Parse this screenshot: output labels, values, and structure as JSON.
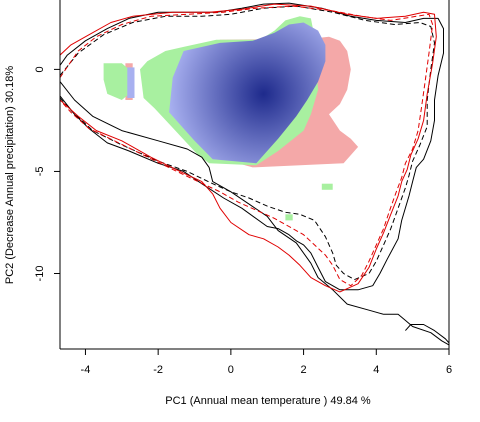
{
  "chart_data": {
    "type": "contour-density",
    "xlabel": "PC1 (Annual mean temperature ) 49.84 %",
    "ylabel": "PC2 (Decrease Annual precipitation) 30.18%",
    "xlim": [
      -4.7,
      6.0
    ],
    "ylim": [
      -13.7,
      3.4
    ],
    "x_ticks": [
      -4,
      -2,
      0,
      2,
      4,
      6
    ],
    "y_ticks": [
      0,
      -5,
      -10
    ],
    "grid": false,
    "colors": {
      "density_core": "#1e2a8c",
      "density_edge": "#a8b0f0",
      "region_green": "#a8f0a0",
      "region_pink": "#f4a8a8",
      "contour_black": "#000000",
      "contour_red": "#e00000"
    },
    "density_peak": {
      "x": 0.9,
      "y": -1.2
    },
    "regions": {
      "pink": [
        [
          -0.3,
          1.45
        ],
        [
          2.2,
          1.5
        ],
        [
          2.7,
          1.6
        ],
        [
          3.0,
          1.4
        ],
        [
          3.2,
          0.9
        ],
        [
          3.3,
          0.0
        ],
        [
          3.2,
          -1.0
        ],
        [
          3.0,
          -1.7
        ],
        [
          2.7,
          -2.2
        ],
        [
          3.0,
          -3.0
        ],
        [
          3.3,
          -3.4
        ],
        [
          3.5,
          -3.8
        ],
        [
          3.1,
          -4.6
        ],
        [
          0.6,
          -4.8
        ],
        [
          -0.4,
          -4.3
        ],
        [
          -0.9,
          -3.3
        ],
        [
          -0.9,
          1.0
        ]
      ],
      "green": [
        [
          -1.3,
          1.1
        ],
        [
          -0.4,
          1.45
        ],
        [
          0.8,
          1.45
        ],
        [
          1.2,
          1.9
        ],
        [
          1.5,
          2.4
        ],
        [
          1.9,
          2.6
        ],
        [
          2.2,
          2.5
        ],
        [
          2.3,
          1.6
        ],
        [
          2.4,
          -1.0
        ],
        [
          2.2,
          -2.2
        ],
        [
          2.0,
          -3.0
        ],
        [
          1.3,
          -4.0
        ],
        [
          0.7,
          -4.7
        ],
        [
          -0.6,
          -4.6
        ],
        [
          -0.9,
          -4.2
        ],
        [
          -2.1,
          -1.9
        ],
        [
          -2.4,
          -1.4
        ],
        [
          -2.5,
          0.0
        ],
        [
          -2.3,
          0.4
        ],
        [
          -1.8,
          0.9
        ]
      ],
      "green_small": [
        [
          [
            -3.5,
            0.3
          ],
          [
            -3.0,
            0.3
          ],
          [
            -2.8,
            0.0
          ],
          [
            -2.8,
            -1.2
          ],
          [
            -3.0,
            -1.5
          ],
          [
            -3.4,
            -1.2
          ],
          [
            -3.5,
            -0.5
          ]
        ],
        [
          [
            2.5,
            -5.6
          ],
          [
            2.8,
            -5.6
          ],
          [
            2.8,
            -5.9
          ],
          [
            2.5,
            -5.9
          ]
        ],
        [
          [
            1.5,
            -7.1
          ],
          [
            1.7,
            -7.1
          ],
          [
            1.7,
            -7.4
          ],
          [
            1.5,
            -7.4
          ]
        ]
      ],
      "pink_small": [
        [
          [
            -2.9,
            0.3
          ],
          [
            -2.7,
            0.3
          ],
          [
            -2.7,
            -1.5
          ],
          [
            -2.9,
            -1.5
          ]
        ]
      ],
      "blue": [
        [
          -1.3,
          0.9
        ],
        [
          -0.3,
          1.3
        ],
        [
          0.6,
          1.4
        ],
        [
          1.2,
          1.8
        ],
        [
          1.6,
          2.2
        ],
        [
          2.0,
          2.3
        ],
        [
          2.4,
          1.9
        ],
        [
          2.6,
          1.2
        ],
        [
          2.6,
          0.4
        ],
        [
          2.4,
          -0.6
        ],
        [
          2.1,
          -1.5
        ],
        [
          1.8,
          -2.3
        ],
        [
          1.3,
          -3.4
        ],
        [
          0.7,
          -4.6
        ],
        [
          -0.5,
          -4.4
        ],
        [
          -1.0,
          -3.5
        ],
        [
          -1.7,
          -2.1
        ],
        [
          -1.6,
          -0.4
        ]
      ],
      "blue_small": [
        [
          [
            -2.85,
            0.1
          ],
          [
            -2.65,
            0.1
          ],
          [
            -2.65,
            -1.4
          ],
          [
            -2.85,
            -1.4
          ]
        ]
      ]
    },
    "series": [
      {
        "style": "solid",
        "color": "#000000",
        "points": [
          [
            -4.7,
            0.2
          ],
          [
            -4.5,
            0.7
          ],
          [
            -4.0,
            1.4
          ],
          [
            -3.4,
            2.0
          ],
          [
            -2.8,
            2.5
          ],
          [
            -2.0,
            2.8
          ],
          [
            -1.2,
            2.8
          ],
          [
            -0.4,
            2.8
          ],
          [
            0.3,
            3.0
          ],
          [
            0.9,
            3.2
          ],
          [
            1.6,
            3.25
          ],
          [
            2.5,
            3.0
          ],
          [
            3.3,
            2.6
          ],
          [
            4.0,
            2.4
          ],
          [
            4.8,
            2.3
          ],
          [
            5.3,
            2.5
          ],
          [
            5.7,
            2.5
          ],
          [
            5.85,
            2.0
          ],
          [
            5.85,
            0.8
          ],
          [
            5.7,
            -0.3
          ],
          [
            5.6,
            -1.5
          ],
          [
            5.6,
            -2.5
          ],
          [
            5.5,
            -3.5
          ],
          [
            5.3,
            -4.4
          ],
          [
            5.1,
            -4.8
          ],
          [
            5.0,
            -5.5
          ],
          [
            4.9,
            -6.2
          ],
          [
            4.7,
            -7.4
          ],
          [
            4.6,
            -8.3
          ],
          [
            4.3,
            -9.3
          ],
          [
            4.1,
            -10.0
          ],
          [
            3.9,
            -10.6
          ],
          [
            3.5,
            -10.8
          ],
          [
            3.0,
            -10.8
          ],
          [
            2.6,
            -10.4
          ],
          [
            2.4,
            -9.7
          ],
          [
            2.2,
            -9.0
          ],
          [
            2.0,
            -8.6
          ],
          [
            1.8,
            -8.4
          ],
          [
            1.6,
            -8.1
          ],
          [
            1.3,
            -7.8
          ],
          [
            1.0,
            -7.7
          ],
          [
            0.3,
            -6.8
          ],
          [
            -0.2,
            -6.3
          ],
          [
            -0.8,
            -5.6
          ],
          [
            -1.3,
            -5.0
          ],
          [
            -2.0,
            -4.6
          ],
          [
            -2.8,
            -4.0
          ],
          [
            -3.4,
            -3.6
          ],
          [
            -3.9,
            -2.9
          ],
          [
            -4.3,
            -2.2
          ],
          [
            -4.7,
            -1.3
          ]
        ]
      },
      {
        "style": "solid",
        "color": "#000000",
        "points": [
          [
            -4.7,
            -0.6
          ],
          [
            -4.3,
            -1.5
          ],
          [
            -3.8,
            -2.3
          ],
          [
            -3.0,
            -3.0
          ],
          [
            -2.0,
            -3.5
          ],
          [
            -1.2,
            -3.9
          ],
          [
            -0.8,
            -4.3
          ],
          [
            -0.6,
            -4.8
          ],
          [
            -0.5,
            -5.5
          ],
          [
            0.0,
            -6.0
          ],
          [
            0.5,
            -6.6
          ],
          [
            1.0,
            -7.2
          ],
          [
            1.3,
            -7.9
          ],
          [
            1.8,
            -8.5
          ],
          [
            2.2,
            -9.5
          ],
          [
            2.4,
            -10.2
          ],
          [
            2.8,
            -10.8
          ],
          [
            3.2,
            -11.5
          ],
          [
            3.8,
            -11.8
          ],
          [
            4.2,
            -12.0
          ],
          [
            4.6,
            -12.0
          ],
          [
            4.8,
            -12.3
          ],
          [
            5.0,
            -12.6
          ],
          [
            5.5,
            -12.9
          ],
          [
            5.8,
            -13.3
          ],
          [
            6.0,
            -13.5
          ]
        ]
      },
      {
        "style": "solid",
        "color": "#000000",
        "points": [
          [
            4.8,
            -12.8
          ],
          [
            4.95,
            -12.5
          ],
          [
            5.3,
            -12.5
          ],
          [
            5.6,
            -12.8
          ],
          [
            5.9,
            -13.2
          ],
          [
            6.0,
            -13.4
          ]
        ]
      },
      {
        "style": "dashed",
        "color": "#000000",
        "points": [
          [
            -4.7,
            -0.3
          ],
          [
            -4.2,
            0.8
          ],
          [
            -3.5,
            1.7
          ],
          [
            -2.7,
            2.3
          ],
          [
            -1.8,
            2.6
          ],
          [
            -0.8,
            2.6
          ],
          [
            0.0,
            2.7
          ],
          [
            0.9,
            3.0
          ],
          [
            1.8,
            3.1
          ],
          [
            2.8,
            2.8
          ],
          [
            3.7,
            2.4
          ],
          [
            4.5,
            2.2
          ],
          [
            5.2,
            2.3
          ],
          [
            5.5,
            2.1
          ],
          [
            5.6,
            1.3
          ],
          [
            5.5,
            0.0
          ],
          [
            5.4,
            -1.5
          ],
          [
            5.4,
            -2.8
          ],
          [
            5.2,
            -3.7
          ],
          [
            5.0,
            -4.5
          ],
          [
            4.9,
            -5.2
          ],
          [
            4.8,
            -5.8
          ],
          [
            4.6,
            -6.8
          ],
          [
            4.4,
            -7.8
          ],
          [
            4.2,
            -8.6
          ],
          [
            4.0,
            -9.4
          ],
          [
            3.8,
            -10.0
          ],
          [
            3.4,
            -10.3
          ],
          [
            3.1,
            -10.0
          ],
          [
            2.9,
            -9.6
          ],
          [
            2.8,
            -9.0
          ],
          [
            2.6,
            -8.2
          ],
          [
            2.3,
            -7.4
          ],
          [
            1.9,
            -7.1
          ],
          [
            1.5,
            -7.0
          ],
          [
            1.0,
            -6.7
          ],
          [
            0.5,
            -6.3
          ],
          [
            0.0,
            -6.0
          ],
          [
            -0.5,
            -5.6
          ],
          [
            -1.2,
            -5.0
          ],
          [
            -2.0,
            -4.5
          ],
          [
            -3.0,
            -3.7
          ],
          [
            -3.8,
            -3.0
          ],
          [
            -4.4,
            -2.0
          ],
          [
            -4.7,
            -1.4
          ]
        ]
      },
      {
        "style": "solid",
        "color": "#e00000",
        "points": [
          [
            -4.7,
            0.7
          ],
          [
            -4.4,
            1.2
          ],
          [
            -3.9,
            1.7
          ],
          [
            -3.3,
            2.3
          ],
          [
            -2.7,
            2.6
          ],
          [
            -1.6,
            2.8
          ],
          [
            -0.6,
            2.8
          ],
          [
            0.3,
            2.95
          ],
          [
            1.2,
            3.2
          ],
          [
            2.2,
            3.1
          ],
          [
            3.2,
            2.7
          ],
          [
            4.0,
            2.5
          ],
          [
            4.8,
            2.6
          ],
          [
            5.3,
            2.8
          ],
          [
            5.6,
            2.7
          ],
          [
            5.65,
            1.6
          ],
          [
            5.55,
            0.3
          ],
          [
            5.4,
            -1.2
          ],
          [
            5.3,
            -2.5
          ],
          [
            5.15,
            -3.4
          ],
          [
            4.95,
            -4.2
          ],
          [
            4.85,
            -4.9
          ],
          [
            4.7,
            -5.5
          ],
          [
            4.6,
            -6.2
          ],
          [
            4.4,
            -7.1
          ],
          [
            4.2,
            -8.0
          ],
          [
            4.0,
            -8.8
          ],
          [
            3.8,
            -9.7
          ],
          [
            3.5,
            -10.5
          ],
          [
            3.0,
            -10.9
          ],
          [
            2.6,
            -10.6
          ],
          [
            2.2,
            -10.2
          ],
          [
            1.9,
            -9.6
          ],
          [
            1.6,
            -9.1
          ],
          [
            1.3,
            -8.7
          ],
          [
            0.9,
            -8.3
          ],
          [
            0.5,
            -8.1
          ],
          [
            0.0,
            -7.5
          ],
          [
            -0.3,
            -6.8
          ],
          [
            -0.5,
            -6.1
          ],
          [
            -0.8,
            -5.5
          ],
          [
            -1.4,
            -5.0
          ],
          [
            -2.2,
            -4.3
          ],
          [
            -3.0,
            -3.5
          ],
          [
            -3.7,
            -3.0
          ],
          [
            -4.2,
            -2.3
          ],
          [
            -4.7,
            -1.5
          ]
        ]
      },
      {
        "style": "dashed",
        "color": "#e00000",
        "points": [
          [
            -4.7,
            -0.4
          ],
          [
            -4.2,
            0.9
          ],
          [
            -3.7,
            1.6
          ],
          [
            -3.0,
            2.2
          ],
          [
            -2.2,
            2.6
          ],
          [
            -1.2,
            2.7
          ],
          [
            -0.2,
            2.8
          ],
          [
            0.7,
            3.0
          ],
          [
            1.7,
            3.1
          ],
          [
            2.7,
            2.9
          ],
          [
            3.6,
            2.6
          ],
          [
            4.4,
            2.4
          ],
          [
            5.1,
            2.6
          ],
          [
            5.45,
            2.7
          ],
          [
            5.55,
            2.2
          ],
          [
            5.45,
            0.8
          ],
          [
            5.35,
            -0.5
          ],
          [
            5.25,
            -1.8
          ],
          [
            5.15,
            -3.0
          ],
          [
            5.0,
            -3.9
          ],
          [
            4.8,
            -4.6
          ],
          [
            4.7,
            -5.3
          ],
          [
            4.55,
            -6.0
          ],
          [
            4.35,
            -7.0
          ],
          [
            4.2,
            -7.8
          ],
          [
            4.0,
            -8.6
          ],
          [
            3.8,
            -9.4
          ],
          [
            3.6,
            -10.1
          ],
          [
            3.3,
            -10.6
          ],
          [
            3.0,
            -10.3
          ],
          [
            2.8,
            -9.6
          ],
          [
            2.6,
            -9.1
          ],
          [
            2.3,
            -8.6
          ],
          [
            2.0,
            -8.1
          ],
          [
            1.6,
            -7.7
          ],
          [
            1.2,
            -7.3
          ],
          [
            0.7,
            -6.9
          ],
          [
            0.2,
            -6.5
          ],
          [
            -0.3,
            -6.0
          ],
          [
            -0.9,
            -5.5
          ],
          [
            -1.6,
            -4.9
          ],
          [
            -2.4,
            -4.2
          ],
          [
            -3.2,
            -3.5
          ],
          [
            -3.9,
            -2.9
          ],
          [
            -4.4,
            -2.1
          ],
          [
            -4.7,
            -1.5
          ]
        ]
      }
    ]
  }
}
